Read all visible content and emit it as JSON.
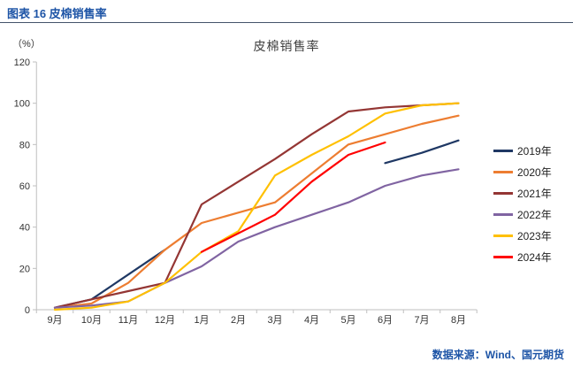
{
  "colors": {
    "accent_blue": "#1D54A6",
    "rule": "#44546A",
    "axis": "#BFBFBF",
    "tick_text": "#333333"
  },
  "header": {
    "caption": "图表 16 皮棉销售率"
  },
  "footer": {
    "source": "数据来源：Wind、国元期货"
  },
  "chart_data": {
    "type": "line",
    "title": "皮棉销售率",
    "y_unit_label": "（%）",
    "categories": [
      "9月",
      "10月",
      "11月",
      "12月",
      "1月",
      "2月",
      "3月",
      "4月",
      "5月",
      "6月",
      "7月",
      "8月"
    ],
    "ylim": [
      0,
      120
    ],
    "ytick_interval": 20,
    "grid": false,
    "legend_position": "right",
    "series": [
      {
        "name": "2019年",
        "color": "#1F3864",
        "values": [
          1,
          5,
          17,
          29,
          null,
          null,
          null,
          null,
          null,
          71,
          76,
          82
        ]
      },
      {
        "name": "2020年",
        "color": "#ED7D31",
        "values": [
          1,
          3,
          13,
          29,
          42,
          47,
          52,
          66,
          80,
          85,
          90,
          94
        ]
      },
      {
        "name": "2021年",
        "color": "#943634",
        "values": [
          1,
          5,
          9,
          13,
          51,
          62,
          73,
          85,
          96,
          98,
          99,
          100
        ]
      },
      {
        "name": "2022年",
        "color": "#8064A2",
        "values": [
          1,
          2,
          4,
          13,
          21,
          33,
          40,
          46,
          52,
          60,
          65,
          68
        ]
      },
      {
        "name": "2023年",
        "color": "#FFC000",
        "values": [
          0,
          1,
          4,
          13,
          28,
          38,
          65,
          75,
          84,
          95,
          99,
          100
        ]
      },
      {
        "name": "2024年",
        "color": "#FF0000",
        "values": [
          null,
          null,
          null,
          null,
          28,
          37,
          46,
          62,
          75,
          81,
          null,
          null
        ]
      }
    ]
  }
}
